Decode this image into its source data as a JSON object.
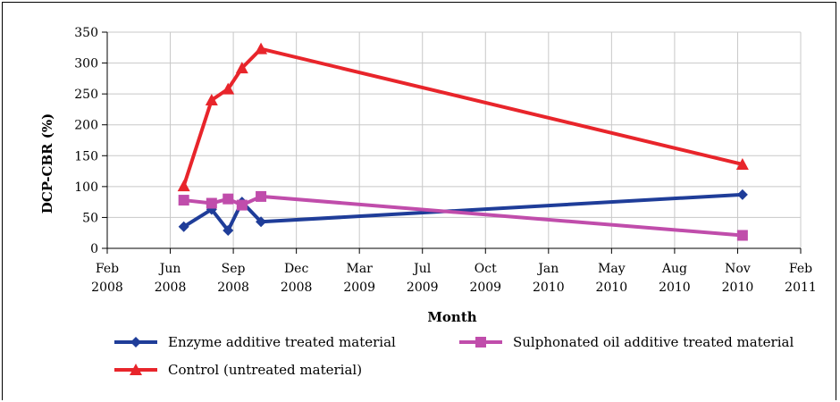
{
  "chart_data": {
    "type": "line",
    "title": "",
    "xlabel": "Month",
    "ylabel": "DCP-CBR (%)",
    "ylim": [
      0,
      350
    ],
    "yticks": [
      "0",
      "50",
      "100",
      "150",
      "200",
      "250",
      "300",
      "350"
    ],
    "xticks": [
      {
        "month": "Feb",
        "year": "2008"
      },
      {
        "month": "Jun",
        "year": "2008"
      },
      {
        "month": "Sep",
        "year": "2008"
      },
      {
        "month": "Dec",
        "year": "2008"
      },
      {
        "month": "Mar",
        "year": "2009"
      },
      {
        "month": "Jul",
        "year": "2009"
      },
      {
        "month": "Oct",
        "year": "2009"
      },
      {
        "month": "Jan",
        "year": "2010"
      },
      {
        "month": "May",
        "year": "2010"
      },
      {
        "month": "Aug",
        "year": "2010"
      },
      {
        "month": "Nov",
        "year": "2010"
      },
      {
        "month": "Feb",
        "year": "2011"
      }
    ],
    "xlim": [
      "2008-02-01",
      "2011-02-01"
    ],
    "grid": true,
    "legend_position": "bottom",
    "series": [
      {
        "name": "Enzyme additive treated material",
        "color": "#1f3d99",
        "marker": "diamond",
        "points": [
          {
            "x": "2008-06-01",
            "y": 35
          },
          {
            "x": "2008-07-15",
            "y": 63
          },
          {
            "x": "2008-08-10",
            "y": 29
          },
          {
            "x": "2008-09-01",
            "y": 75
          },
          {
            "x": "2008-10-01",
            "y": 43
          },
          {
            "x": "2010-11-01",
            "y": 87
          }
        ]
      },
      {
        "name": "Sulphonated oil additive treated material",
        "color": "#c04dab",
        "marker": "square",
        "points": [
          {
            "x": "2008-06-01",
            "y": 78
          },
          {
            "x": "2008-07-15",
            "y": 73
          },
          {
            "x": "2008-08-10",
            "y": 80
          },
          {
            "x": "2008-09-01",
            "y": 70
          },
          {
            "x": "2008-10-01",
            "y": 84
          },
          {
            "x": "2010-11-01",
            "y": 21
          }
        ]
      },
      {
        "name": "Control (untreated material)",
        "color": "#e8252b",
        "marker": "triangle",
        "points": [
          {
            "x": "2008-06-01",
            "y": 101
          },
          {
            "x": "2008-07-15",
            "y": 240
          },
          {
            "x": "2008-08-10",
            "y": 258
          },
          {
            "x": "2008-09-01",
            "y": 292
          },
          {
            "x": "2008-10-01",
            "y": 323
          },
          {
            "x": "2010-11-01",
            "y": 136
          }
        ]
      }
    ]
  }
}
